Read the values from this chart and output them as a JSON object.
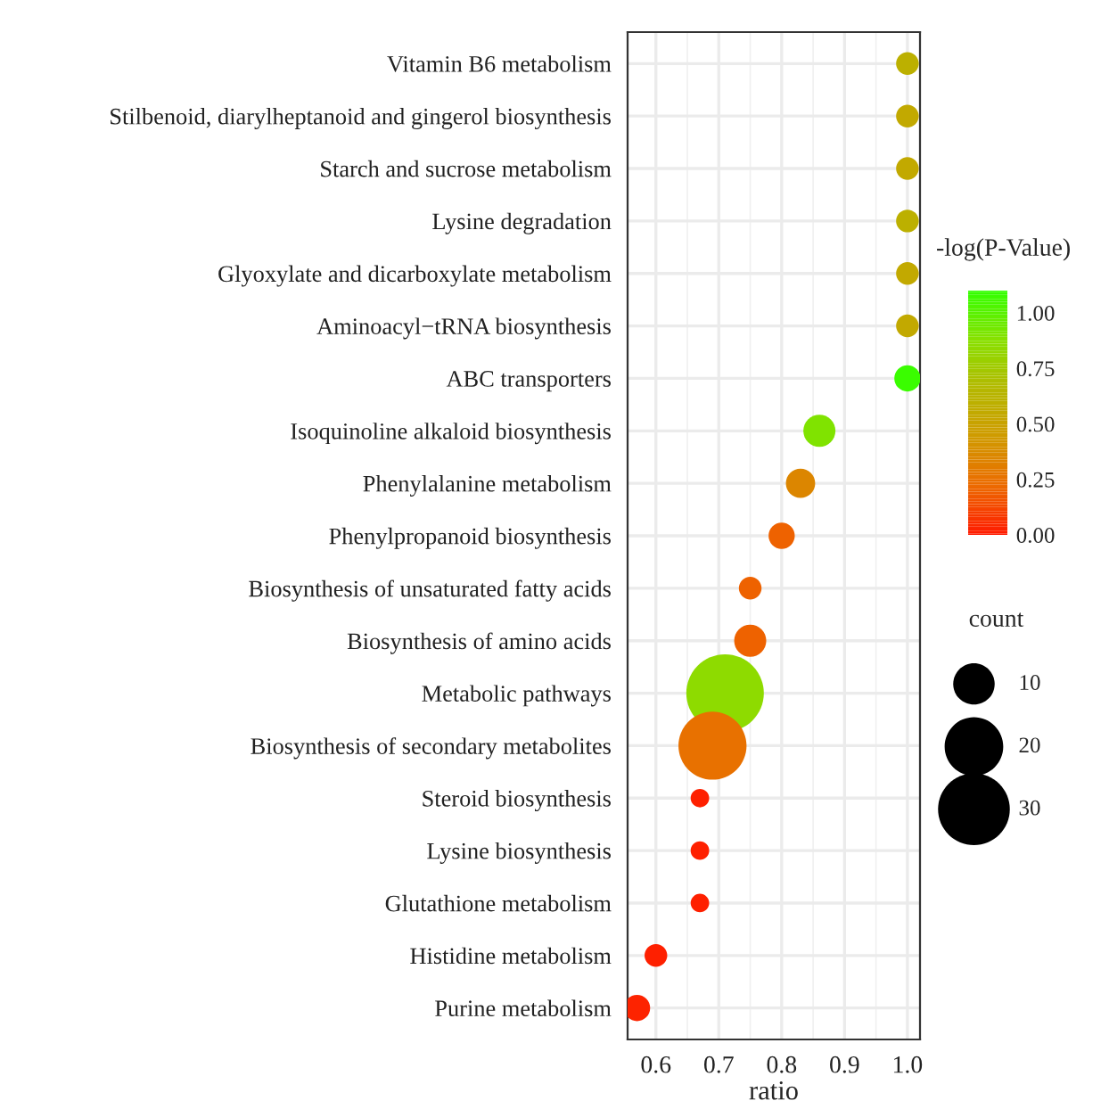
{
  "chart_data": {
    "type": "bubble",
    "xlabel": "ratio",
    "legend_title": "count",
    "clabel": "-log(P-Value)",
    "categories": [
      "Vitamin B6 metabolism",
      "Stilbenoid, diarylheptanoid and gingerol biosynthesis",
      "Starch and sucrose metabolism",
      "Lysine degradation",
      "Glyoxylate and dicarboxylate metabolism",
      "Aminoacyl−tRNA biosynthesis",
      "ABC transporters",
      "Isoquinoline alkaloid biosynthesis",
      "Phenylalanine metabolism",
      "Phenylpropanoid biosynthesis",
      "Biosynthesis of unsaturated fatty acids",
      "Biosynthesis of amino acids",
      "Metabolic pathways",
      "Biosynthesis of secondary metabolites",
      "Steroid biosynthesis",
      "Lysine biosynthesis",
      "Glutathione metabolism",
      "Histidine metabolism",
      "Purine metabolism"
    ],
    "orientation": "horizontal",
    "values": [
      1.0,
      1.0,
      1.0,
      1.0,
      1.0,
      1.0,
      1.0,
      0.86,
      0.83,
      0.8,
      0.75,
      0.75,
      0.71,
      0.69,
      0.67,
      0.67,
      0.67,
      0.6,
      0.57
    ],
    "sizes": [
      3,
      3,
      3,
      3,
      3,
      3,
      4,
      6,
      5,
      4,
      3,
      6,
      35,
      27,
      2,
      2,
      2,
      3,
      4
    ],
    "cvalues": [
      0.6,
      0.55,
      0.55,
      0.6,
      0.55,
      0.55,
      1.08,
      0.9,
      0.35,
      0.2,
      0.2,
      0.2,
      0.85,
      0.25,
      0.02,
      0.02,
      0.02,
      0.02,
      0.03
    ],
    "size_legend": [
      10,
      20,
      30
    ],
    "clim": [
      0,
      1.1
    ],
    "cticks": [
      {
        "value": 0,
        "label": "0.00"
      },
      {
        "value": 0.25,
        "label": "0.25"
      },
      {
        "value": 0.5,
        "label": "0.50"
      },
      {
        "value": 0.75,
        "label": "0.75"
      },
      {
        "value": 1,
        "label": "1.00"
      }
    ],
    "xlim": [
      0.555,
      1.02
    ],
    "xticks": [
      0.6,
      0.7,
      0.8,
      0.9,
      {
        "value": 1.0,
        "label": "1.0"
      }
    ],
    "grid": true
  }
}
